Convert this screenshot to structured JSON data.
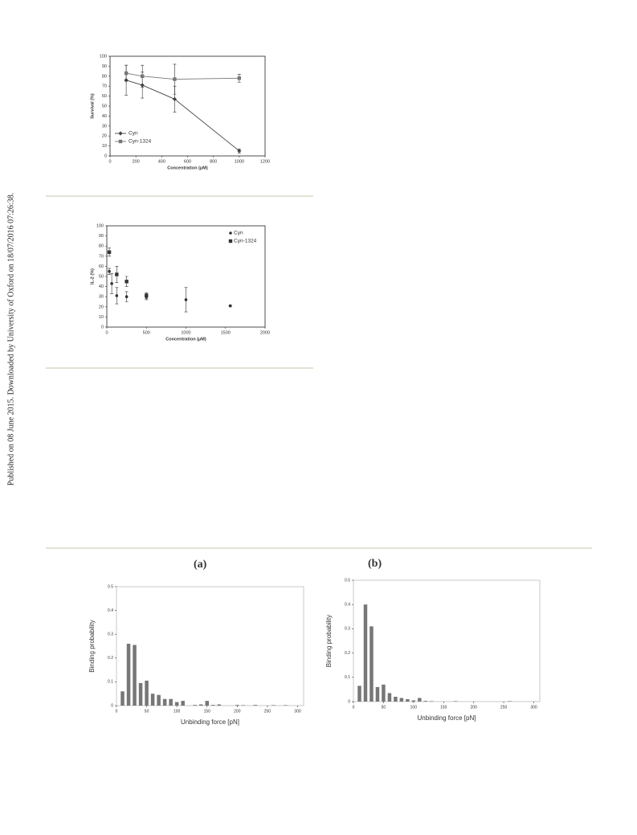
{
  "side_note": "Published on 08 June 2015. Downloaded by University of Oxford on 18/07/2016 07:26:38.",
  "chart_data": [
    {
      "type": "line",
      "xlabel": "Concentration (μM)",
      "ylabel": "Survival (%)",
      "legend": "lower left",
      "xlim": [
        0,
        1200
      ],
      "xticks": [
        0,
        200,
        400,
        600,
        800,
        1000,
        1200
      ],
      "ylim": [
        0,
        100
      ],
      "yticks": [
        0,
        10,
        20,
        30,
        40,
        50,
        60,
        70,
        80,
        90,
        100
      ],
      "series": [
        {
          "name": "Cyn",
          "color": "#444444",
          "marker": "diamond",
          "x": [
            125,
            250,
            500,
            1000
          ],
          "values": [
            76,
            71,
            57,
            5
          ],
          "errors": [
            15,
            13,
            13,
            2
          ]
        },
        {
          "name": "Cyn-1324",
          "color": "#777777",
          "marker": "square",
          "x": [
            125,
            250,
            500,
            1000
          ],
          "values": [
            83,
            80,
            77,
            78
          ],
          "errors": [
            8,
            11,
            15,
            4
          ]
        }
      ]
    },
    {
      "type": "scatter",
      "xlabel": "Concentration (μM)",
      "ylabel": "IL-2 (%)",
      "legend": "upper right",
      "xlim": [
        0,
        2000
      ],
      "xticks": [
        0,
        500,
        1000,
        1500,
        2000
      ],
      "ylim": [
        0,
        100
      ],
      "yticks": [
        0,
        10,
        20,
        30,
        40,
        50,
        60,
        70,
        80,
        90,
        100
      ],
      "series": [
        {
          "name": "Cyn",
          "color": "#333333",
          "marker": "circle",
          "x": [
            31,
            62,
            125,
            250,
            500,
            1000,
            1560
          ],
          "values": [
            55,
            43,
            31,
            30,
            30,
            27,
            21
          ],
          "errors": [
            3,
            10,
            8,
            5,
            3,
            12,
            1
          ]
        },
        {
          "name": "Cyn-1324",
          "color": "#333333",
          "marker": "square",
          "x": [
            31,
            125,
            250,
            500
          ],
          "values": [
            74,
            52,
            45,
            31
          ],
          "errors": [
            4,
            8,
            5,
            3
          ]
        }
      ]
    },
    {
      "type": "bar",
      "label": "(a)",
      "xlabel": "Unbinding force [pN]",
      "ylabel": "Binding probability",
      "color": "#777777",
      "xlim": [
        0,
        310
      ],
      "xticks": [
        0,
        50,
        100,
        150,
        200,
        250,
        300
      ],
      "ylim": [
        0,
        0.5
      ],
      "yticks": [
        0,
        0.1,
        0.2,
        0.3,
        0.4,
        0.5
      ],
      "x": [
        10,
        20,
        30,
        40,
        50,
        60,
        70,
        80,
        90,
        100,
        110,
        120,
        130,
        140,
        150,
        160,
        170,
        180,
        190,
        200,
        210,
        220,
        230,
        240,
        250,
        260,
        270,
        280
      ],
      "values": [
        0.06,
        0.26,
        0.255,
        0.095,
        0.105,
        0.05,
        0.045,
        0.028,
        0.028,
        0.015,
        0.02,
        0,
        0.003,
        0.005,
        0.02,
        0.003,
        0.005,
        0,
        0,
        0.003,
        0.002,
        0,
        0.003,
        0,
        0,
        0.002,
        0,
        0.002
      ]
    },
    {
      "type": "bar",
      "label": "(b)",
      "xlabel": "Unbinding force [pN]",
      "ylabel": "Binding probability",
      "color": "#777777",
      "xlim": [
        0,
        310
      ],
      "xticks": [
        0,
        50,
        100,
        150,
        200,
        250,
        300
      ],
      "ylim": [
        0,
        0.5
      ],
      "yticks": [
        0,
        0.1,
        0.2,
        0.3,
        0.4,
        0.5
      ],
      "x": [
        10,
        20,
        30,
        40,
        50,
        60,
        70,
        80,
        90,
        100,
        110,
        120,
        130,
        140,
        150,
        160,
        170,
        180,
        190,
        200,
        210,
        220,
        230,
        240,
        250,
        260
      ],
      "values": [
        0.065,
        0.4,
        0.31,
        0.06,
        0.07,
        0.035,
        0.02,
        0.015,
        0.01,
        0.005,
        0.015,
        0.003,
        0.002,
        0,
        0,
        0,
        0.002,
        0,
        0,
        0,
        0,
        0,
        0,
        0,
        0,
        0.002
      ]
    }
  ]
}
